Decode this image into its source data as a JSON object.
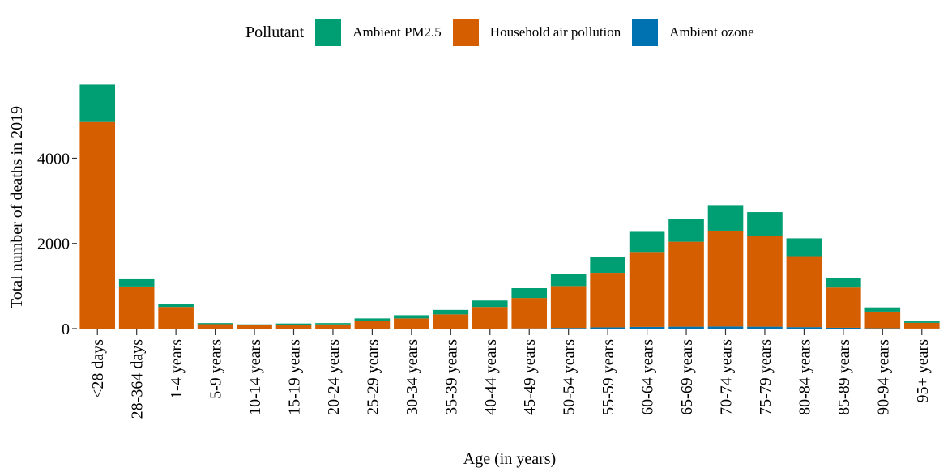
{
  "legend": {
    "title": "Pollutant",
    "items": [
      {
        "label": "Ambient PM2.5",
        "color": "#009E73"
      },
      {
        "label": "Household air pollution",
        "color": "#D55E00"
      },
      {
        "label": "Ambient ozone",
        "color": "#0072B2"
      }
    ]
  },
  "chart_data": {
    "type": "bar",
    "stacked": true,
    "title": "",
    "xlabel": "Age (in years)",
    "ylabel": "Total number of deaths in 2019",
    "ylim": [
      0,
      5700
    ],
    "yticks": [
      0,
      2000,
      4000
    ],
    "ytick_labels": [
      "0",
      "2000",
      "4000"
    ],
    "grid": false,
    "legend_position": "top",
    "categories": [
      "<28 days",
      "28-364 days",
      "1-4 years",
      "5-9 years",
      "10-14 years",
      "15-19 years",
      "20-24 years",
      "25-29 years",
      "30-34 years",
      "35-39 years",
      "40-44 years",
      "45-49 years",
      "50-54 years",
      "55-59 years",
      "60-64 years",
      "65-69 years",
      "70-74 years",
      "75-79 years",
      "80-84 years",
      "85-89 years",
      "90-94 years",
      "95+ years"
    ],
    "series": [
      {
        "name": "Ambient ozone",
        "color": "#0072B2",
        "values": [
          0,
          0,
          0,
          0,
          0,
          0,
          0,
          0,
          0,
          0,
          0,
          5,
          15,
          30,
          40,
          45,
          50,
          45,
          35,
          20,
          8,
          2
        ]
      },
      {
        "name": "Household air pollution",
        "color": "#D55E00",
        "values": [
          4850,
          990,
          510,
          105,
          80,
          95,
          100,
          185,
          240,
          335,
          510,
          715,
          985,
          1280,
          1760,
          1995,
          2250,
          2130,
          1665,
          945,
          392,
          133
        ]
      },
      {
        "name": "Ambient PM2.5",
        "color": "#009E73",
        "values": [
          880,
          170,
          70,
          25,
          20,
          25,
          30,
          55,
          75,
          105,
          150,
          230,
          290,
          380,
          490,
          535,
          600,
          560,
          420,
          230,
          100,
          35
        ]
      }
    ]
  }
}
